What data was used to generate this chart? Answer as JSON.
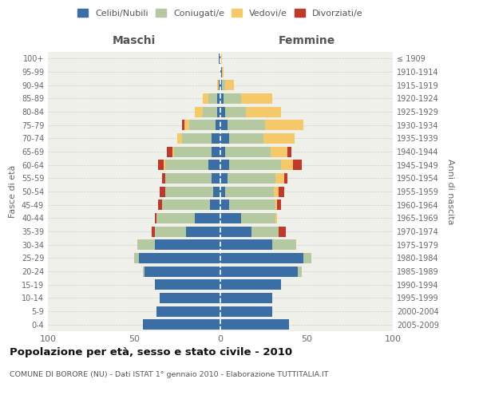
{
  "age_groups": [
    "0-4",
    "5-9",
    "10-14",
    "15-19",
    "20-24",
    "25-29",
    "30-34",
    "35-39",
    "40-44",
    "45-49",
    "50-54",
    "55-59",
    "60-64",
    "65-69",
    "70-74",
    "75-79",
    "80-84",
    "85-89",
    "90-94",
    "95-99",
    "100+"
  ],
  "birth_years": [
    "2005-2009",
    "2000-2004",
    "1995-1999",
    "1990-1994",
    "1985-1989",
    "1980-1984",
    "1975-1979",
    "1970-1974",
    "1965-1969",
    "1960-1964",
    "1955-1959",
    "1950-1954",
    "1945-1949",
    "1940-1944",
    "1935-1939",
    "1930-1934",
    "1925-1929",
    "1920-1924",
    "1915-1919",
    "1910-1914",
    "≤ 1909"
  ],
  "colors": {
    "celibi": "#3a6ea5",
    "coniugati": "#b5c9a0",
    "vedovi": "#f5c96a",
    "divorziati": "#c0392b"
  },
  "maschi": {
    "celibi": [
      45,
      37,
      35,
      38,
      44,
      47,
      38,
      20,
      15,
      6,
      4,
      5,
      7,
      5,
      5,
      3,
      2,
      2,
      1,
      0,
      1
    ],
    "coniugati": [
      0,
      0,
      0,
      0,
      1,
      3,
      10,
      18,
      22,
      28,
      28,
      27,
      25,
      22,
      17,
      15,
      8,
      5,
      0,
      0,
      0
    ],
    "vedovi": [
      0,
      0,
      0,
      0,
      0,
      0,
      0,
      0,
      0,
      0,
      0,
      0,
      1,
      1,
      3,
      3,
      5,
      3,
      1,
      0,
      0
    ],
    "divorziati": [
      0,
      0,
      0,
      0,
      0,
      0,
      0,
      2,
      1,
      2,
      3,
      2,
      3,
      3,
      0,
      1,
      0,
      0,
      0,
      0,
      0
    ]
  },
  "femmine": {
    "celibi": [
      40,
      30,
      30,
      35,
      45,
      48,
      30,
      18,
      12,
      5,
      3,
      4,
      5,
      3,
      5,
      4,
      3,
      2,
      1,
      1,
      0
    ],
    "coniugati": [
      0,
      0,
      0,
      0,
      2,
      5,
      14,
      16,
      20,
      27,
      28,
      28,
      30,
      26,
      20,
      22,
      12,
      10,
      2,
      0,
      0
    ],
    "vedovi": [
      0,
      0,
      0,
      0,
      0,
      0,
      0,
      0,
      1,
      1,
      3,
      5,
      7,
      10,
      18,
      22,
      20,
      18,
      5,
      1,
      1
    ],
    "divorziati": [
      0,
      0,
      0,
      0,
      0,
      0,
      0,
      4,
      0,
      2,
      3,
      2,
      5,
      2,
      0,
      0,
      0,
      0,
      0,
      0,
      0
    ]
  },
  "title": "Popolazione per età, sesso e stato civile - 2010",
  "subtitle": "COMUNE DI BORORE (NU) - Dati ISTAT 1° gennaio 2010 - Elaborazione TUTTITALIA.IT",
  "xlabel_left": "Maschi",
  "xlabel_right": "Femmine",
  "ylabel_left": "Fasce di età",
  "ylabel_right": "Anni di nascita",
  "xlim": 100,
  "bg_color": "#ffffff",
  "plot_bg_color": "#f0f0ea",
  "grid_color": "#cccccc",
  "legend_labels": [
    "Celibi/Nubili",
    "Coniugati/e",
    "Vedovi/e",
    "Divorziati/e"
  ]
}
